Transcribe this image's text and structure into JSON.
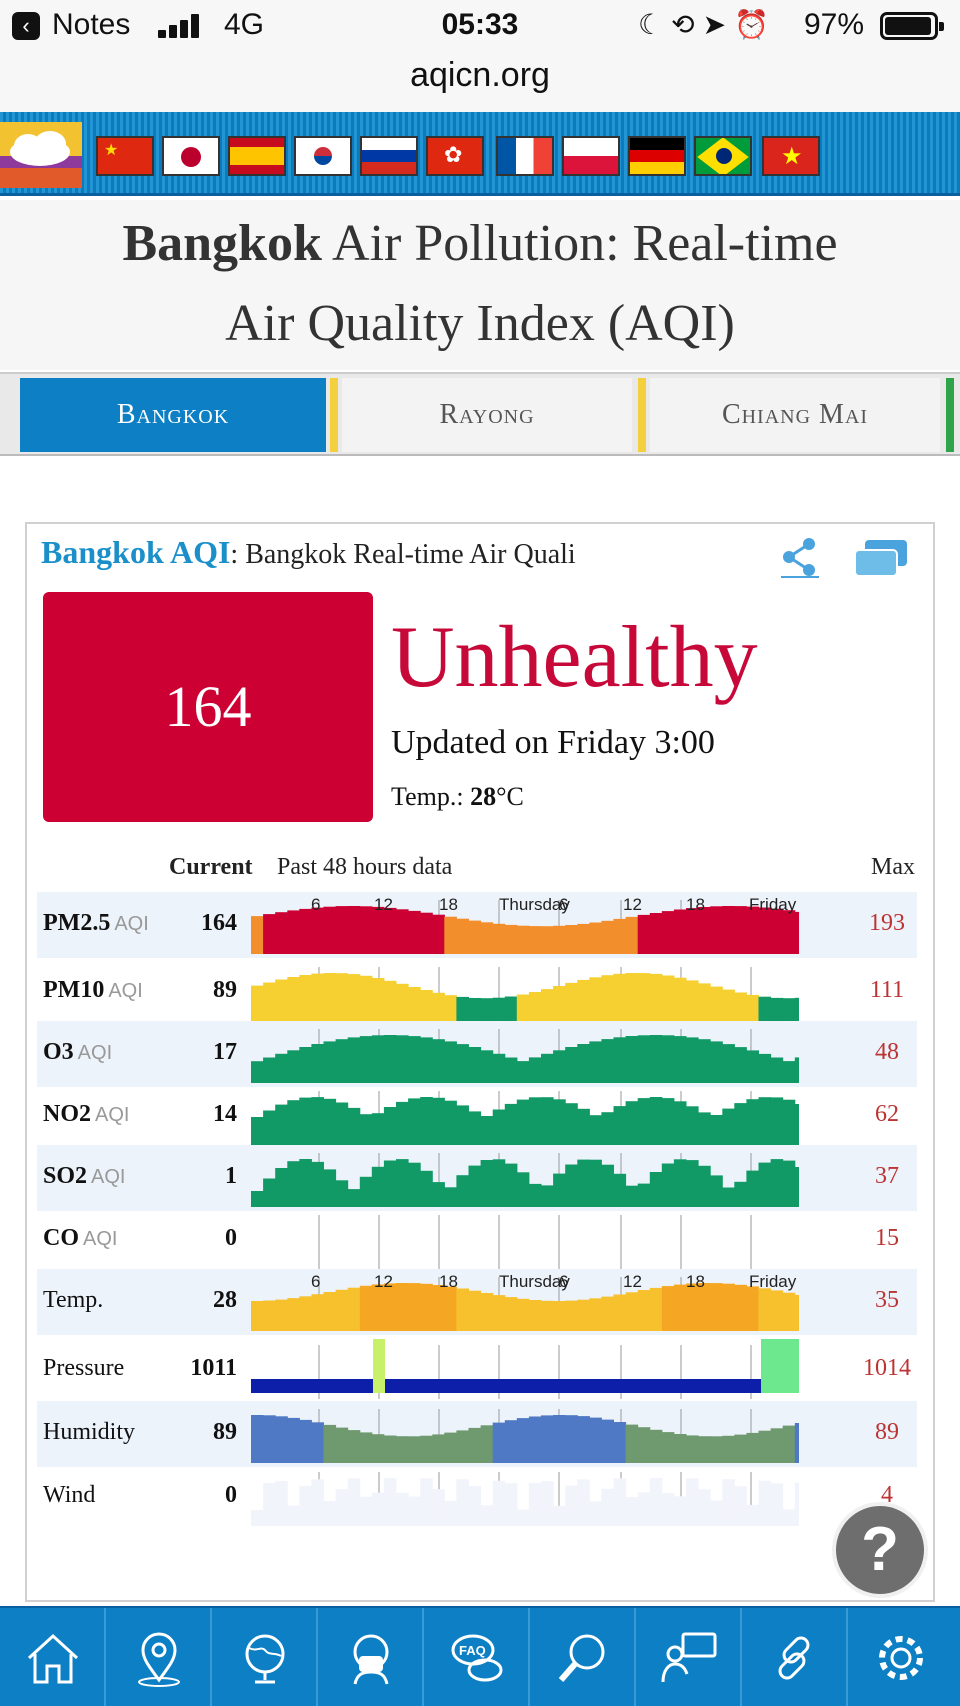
{
  "status_bar": {
    "back_app": "Notes",
    "network": "4G",
    "time": "05:33",
    "battery": "97%",
    "url": "aqicn.org"
  },
  "flags": [
    "China",
    "Japan",
    "Spain",
    "Korea",
    "Russia",
    "Hong Kong",
    "France",
    "Poland",
    "Germany",
    "Brazil",
    "Vietnam"
  ],
  "page_title": {
    "city": "Bangkok",
    "line1_rest": " Air Pollution: Real-time",
    "line2": "Air Quality Index (AQI)"
  },
  "city_tabs": [
    {
      "label": "Bangkok",
      "active": true
    },
    {
      "label": "Rayong",
      "active": false
    },
    {
      "label": "Chiang Mai",
      "active": false
    }
  ],
  "widget": {
    "city": "Bangkok AQI",
    "subtitle": ": Bangkok Real-time Air Quali",
    "aqi_value": "164",
    "level": "Unhealthy",
    "level_color": "#c7093a",
    "aqi_box_color": "#cc0033",
    "updated": "Updated on Friday 3:00",
    "temp_label": "Temp.: ",
    "temp_value": "28",
    "temp_unit": "°C"
  },
  "table": {
    "current_label": "Current",
    "past_label": " Past 48 hours data",
    "max_label": "Max",
    "tick_labels": [
      "6",
      "12",
      "18",
      "Thursday",
      "6",
      "12",
      "18",
      "Friday"
    ],
    "rows": [
      {
        "name": "PM2.5",
        "unit": "AQI",
        "current": "164",
        "max": "193"
      },
      {
        "name": "PM10",
        "unit": "AQI",
        "current": "89",
        "max": "111"
      },
      {
        "name": "O3",
        "unit": "AQI",
        "current": "17",
        "max": "48"
      },
      {
        "name": "NO2",
        "unit": "AQI",
        "current": "14",
        "max": "62"
      },
      {
        "name": "SO2",
        "unit": "AQI",
        "current": "1",
        "max": "37"
      },
      {
        "name": "CO",
        "unit": "AQI",
        "current": "0",
        "max": "15"
      },
      {
        "name": "Temp.",
        "unit": "",
        "current": "28",
        "max": "35"
      },
      {
        "name": "Pressure",
        "unit": "",
        "current": "1011",
        "max": "1014"
      },
      {
        "name": "Humidity",
        "unit": "",
        "current": "89",
        "max": "89"
      },
      {
        "name": "Wind",
        "unit": "",
        "current": "0",
        "max": "4"
      }
    ]
  },
  "help_label": "?",
  "toolbar": [
    "home-icon",
    "location-pin-icon",
    "globe-icon",
    "mask-icon",
    "faq-icon",
    "search-icon",
    "presenter-icon",
    "link-icon",
    "gear-icon"
  ]
}
